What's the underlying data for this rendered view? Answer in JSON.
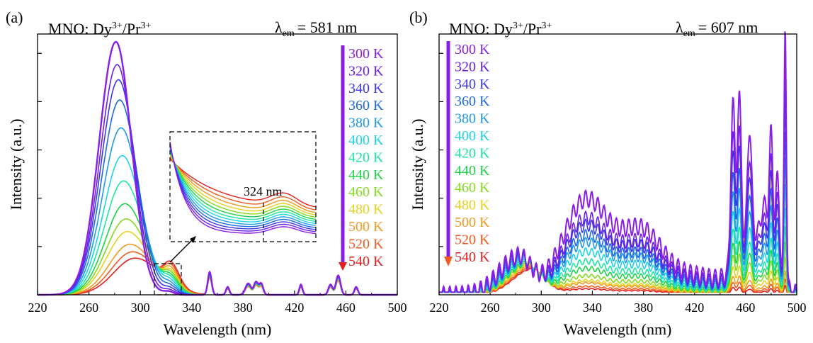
{
  "figure": {
    "description": "Temperature-dependent excitation spectra of MNO: Dy3+/Pr3+"
  },
  "colors": [
    "#8a1ee6",
    "#6a1ee6",
    "#3c38e6",
    "#1e68e6",
    "#1e9ae6",
    "#1ed2e6",
    "#1ee6a0",
    "#1ed246",
    "#82dc1e",
    "#e6d21e",
    "#f09a1e",
    "#f05a1e",
    "#e61e1e"
  ],
  "chart_data": [
    {
      "panel_label": "(a)",
      "type": "line",
      "material": "MNO: Dy",
      "material_sup1": "3+",
      "material_mid": "/Pr",
      "material_sup2": "3+",
      "lambda_sym": "λ",
      "lambda_sub": "em",
      "lambda_value": "= 581 nm",
      "xlabel": "Wavelength (nm)",
      "ylabel": "Intensity (a.u.)",
      "xlim": [
        220,
        500
      ],
      "xticks": [
        "220",
        "260",
        "300",
        "340",
        "380",
        "420",
        "460",
        "500"
      ],
      "legend": [
        "300 K",
        "320 K",
        "340 K",
        "360 K",
        "380 K",
        "400 K",
        "420 K",
        "440 K",
        "460 K",
        "480 K",
        "500 K",
        "520 K",
        "540 K"
      ],
      "peak_wavelength": [
        281,
        282,
        283,
        284,
        285,
        286,
        287,
        288,
        289,
        290,
        292,
        294,
        296
      ],
      "peak_intensity": [
        1.0,
        0.91,
        0.85,
        0.77,
        0.66,
        0.55,
        0.45,
        0.36,
        0.3,
        0.25,
        0.2,
        0.17,
        0.145
      ],
      "inset_annotation": "324 nm"
    },
    {
      "panel_label": "(b)",
      "type": "line",
      "material": "MNO: Dy",
      "material_sup1": "3+",
      "material_mid": "/Pr",
      "material_sup2": "3+",
      "lambda_sym": "λ",
      "lambda_sub": "em",
      "lambda_value": "= 607 nm",
      "xlabel": "Wavelength (nm)",
      "ylabel": "Intensity (a.u.)",
      "xlim": [
        220,
        500
      ],
      "xticks": [
        "220",
        "260",
        "300",
        "340",
        "380",
        "420",
        "460",
        "500"
      ],
      "legend": [
        "300 K",
        "320 K",
        "340 K",
        "360 K",
        "380 K",
        "400 K",
        "420 K",
        "440 K",
        "460 K",
        "480 K",
        "500 K",
        "520 K",
        "540 K"
      ],
      "peak_wavelength": [
        491,
        491,
        491,
        491,
        491,
        491,
        491,
        491,
        491,
        491,
        491,
        491,
        491
      ],
      "peak_intensity": [
        1.0,
        0.83,
        0.73,
        0.62,
        0.52,
        0.42,
        0.33,
        0.26,
        0.2,
        0.14,
        0.09,
        0.06,
        0.035
      ],
      "band_335_intensity": [
        0.4,
        0.32,
        0.29,
        0.25,
        0.22,
        0.18,
        0.14,
        0.11,
        0.08,
        0.06,
        0.05,
        0.035,
        0.025
      ]
    }
  ]
}
